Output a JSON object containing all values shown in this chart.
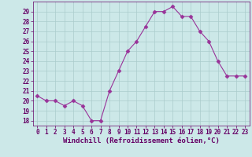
{
  "x": [
    0,
    1,
    2,
    3,
    4,
    5,
    6,
    7,
    8,
    9,
    10,
    11,
    12,
    13,
    14,
    15,
    16,
    17,
    18,
    19,
    20,
    21,
    22,
    23
  ],
  "y": [
    20.5,
    20.0,
    20.0,
    19.5,
    20.0,
    19.5,
    18.0,
    18.0,
    21.0,
    23.0,
    25.0,
    26.0,
    27.5,
    29.0,
    29.0,
    29.5,
    28.5,
    28.5,
    27.0,
    26.0,
    24.0,
    22.5,
    22.5,
    22.5
  ],
  "line_color": "#993399",
  "marker": "D",
  "markersize": 2.5,
  "bg_color": "#cce8e8",
  "grid_color": "#aacccc",
  "xlabel": "Windchill (Refroidissement éolien,°C)",
  "ylim": [
    17.5,
    30.0
  ],
  "xlim": [
    -0.5,
    23.5
  ],
  "yticks": [
    18,
    19,
    20,
    21,
    22,
    23,
    24,
    25,
    26,
    27,
    28,
    29
  ],
  "xticks": [
    0,
    1,
    2,
    3,
    4,
    5,
    6,
    7,
    8,
    9,
    10,
    11,
    12,
    13,
    14,
    15,
    16,
    17,
    18,
    19,
    20,
    21,
    22,
    23
  ],
  "tick_label_size": 5.5,
  "xlabel_size": 6.5,
  "tick_color": "#660066",
  "label_color": "#660066"
}
